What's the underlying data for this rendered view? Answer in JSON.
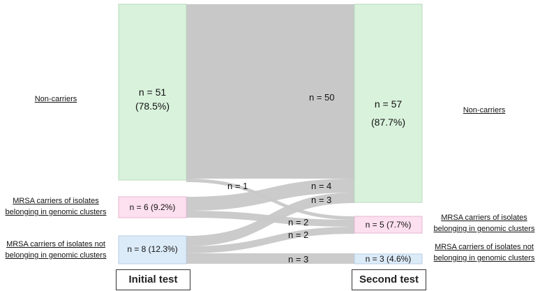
{
  "diagram": {
    "left_labels": {
      "non_carriers": "Non-carriers",
      "mrsa_cluster_line1": "MRSA carriers of isolates",
      "mrsa_cluster_line2": "belonging in genomic clusters",
      "mrsa_noncluster_line1": "MRSA carriers of isolates not",
      "mrsa_noncluster_line2": "belonging in genomic clusters"
    },
    "right_labels": {
      "non_carriers": "Non-carriers",
      "mrsa_cluster_line1": "MRSA carriers of isolates",
      "mrsa_cluster_line2": "belonging in genomic clusters",
      "mrsa_noncluster_line1": "MRSA carriers of isolates not",
      "mrsa_noncluster_line2": "belonging in genomic clusters"
    },
    "initial_nodes": {
      "non_carriers_n": "n = 51",
      "non_carriers_pct": "(78.5%)",
      "cluster": "n = 6 (9.2%)",
      "noncluster": "n = 8 (12.3%)"
    },
    "second_nodes": {
      "non_carriers_n": "n = 57",
      "non_carriers_pct": "(87.7%)",
      "cluster": "n = 5 (7.7%)",
      "noncluster": "n = 3 (4.6%)"
    },
    "flow_labels": {
      "nc_to_nc": "n = 50",
      "nc_to_cluster": "n = 1",
      "cluster_to_nc": "n = 4",
      "noncluster_to_nc": "n = 3",
      "cluster_to_cluster": "n = 2",
      "noncluster_to_cluster": "n = 2",
      "noncluster_to_noncluster": "n = 3"
    },
    "axis": {
      "initial": "Initial test",
      "second": "Second test"
    },
    "colors": {
      "non_carriers": "#d9f2dc",
      "cluster": "#fce0ef",
      "noncluster": "#dcebf8",
      "flow": "#c8c8c8"
    }
  }
}
